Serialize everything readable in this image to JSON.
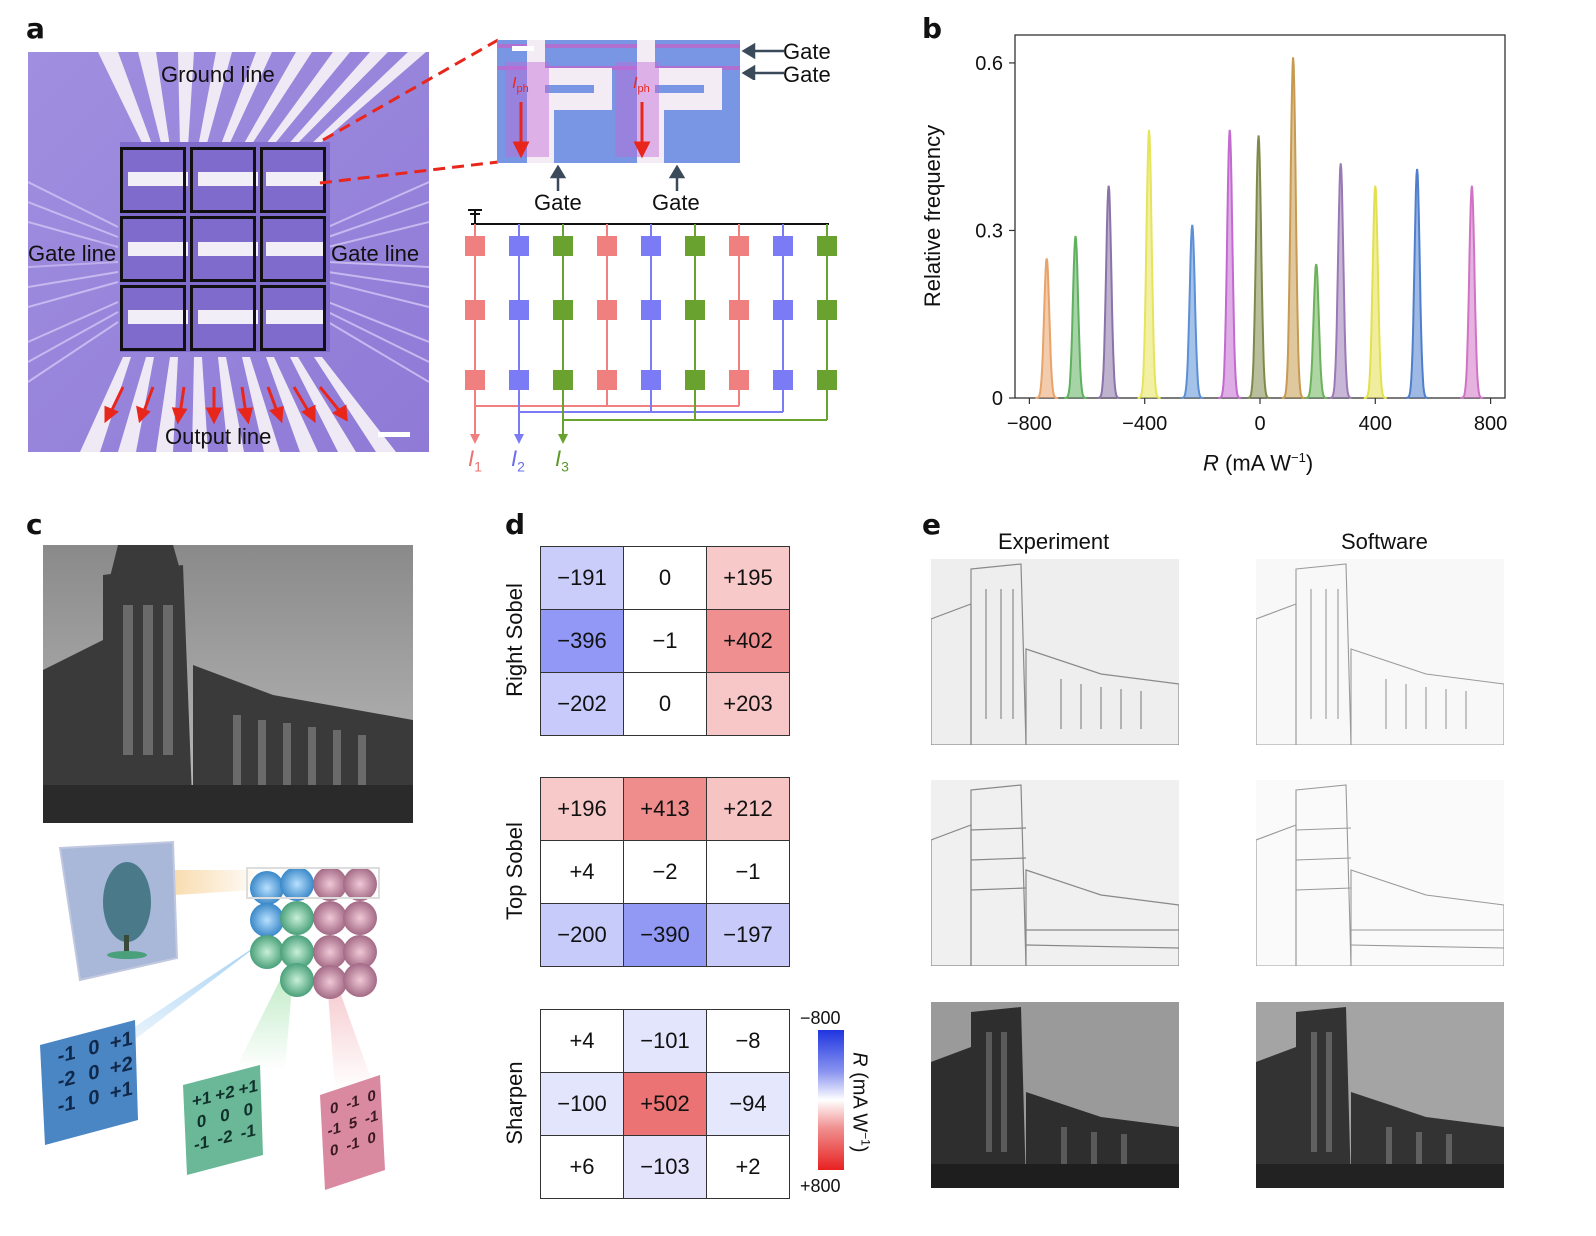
{
  "panel_labels": {
    "a": "a",
    "b": "b",
    "c": "c",
    "d": "d",
    "e": "e"
  },
  "panel_a": {
    "ground_line": "Ground line",
    "gate_line_left": "Gate line",
    "gate_line_right": "Gate line",
    "output_line": "Output line",
    "zoom_gate_top": "Gate",
    "zoom_gate_bottom": "Gate",
    "zoom_gate_left": "Gate",
    "zoom_gate_right": "Gate",
    "iph": "I",
    "iph_sub": "ph",
    "circuit_outputs": [
      {
        "name": "I",
        "sub": "1",
        "color": "#e8726f"
      },
      {
        "name": "I",
        "sub": "2",
        "color": "#6a6cf0"
      },
      {
        "name": "I",
        "sub": "3",
        "color": "#5a9a2a"
      }
    ],
    "colors": {
      "red": "#f08080",
      "blue": "#7b7bf5",
      "green": "#6aa22f"
    }
  },
  "chart_data": {
    "type": "area",
    "title": "",
    "xlabel": "R (mA W−1)",
    "ylabel": "Relative frequency",
    "xlim": [
      -850,
      850
    ],
    "ylim": [
      0,
      0.65
    ],
    "xticks": [
      -800,
      -400,
      0,
      400,
      800
    ],
    "xtick_labels": [
      "−800",
      "−400",
      "0",
      "400",
      "800"
    ],
    "yticks": [
      0,
      0.3,
      0.6
    ],
    "ytick_labels": [
      "0",
      "0.3",
      "0.6"
    ],
    "peaks": [
      {
        "center": -740,
        "height": 0.25,
        "color": "#e8a36a"
      },
      {
        "center": -640,
        "height": 0.29,
        "color": "#5fb05f"
      },
      {
        "center": -525,
        "height": 0.38,
        "color": "#8a73a8"
      },
      {
        "center": -385,
        "height": 0.48,
        "color": "#e6e45a"
      },
      {
        "center": -235,
        "height": 0.31,
        "color": "#5b8fd6"
      },
      {
        "center": -105,
        "height": 0.48,
        "color": "#c36ad0"
      },
      {
        "center": -5,
        "height": 0.47,
        "color": "#7f8a4a"
      },
      {
        "center": 115,
        "height": 0.61,
        "color": "#c79a4f"
      },
      {
        "center": 195,
        "height": 0.24,
        "color": "#6bb25a"
      },
      {
        "center": 280,
        "height": 0.42,
        "color": "#9a7ab5"
      },
      {
        "center": 400,
        "height": 0.38,
        "color": "#e3e04f"
      },
      {
        "center": 545,
        "height": 0.41,
        "color": "#4f7fcc"
      },
      {
        "center": 735,
        "height": 0.38,
        "color": "#d173c5"
      }
    ]
  },
  "panel_c": {
    "kernel_blue": [
      "-1",
      "0",
      "+1",
      "-2",
      "0",
      "+2",
      "-1",
      "0",
      "+1"
    ],
    "kernel_green": [
      "+1",
      "+2",
      "+1",
      "0",
      "0",
      "0",
      "-1",
      "-2",
      "-1"
    ],
    "kernel_red": [
      "0",
      "-1",
      "0",
      "-1",
      "5",
      "-1",
      "0",
      "-1",
      "0"
    ]
  },
  "panel_d": {
    "kernels": [
      {
        "title": "Right Sobel",
        "values": [
          "−191",
          "0",
          "+195",
          "−396",
          "−1",
          "+402",
          "−202",
          "0",
          "+203"
        ],
        "nums": [
          -191,
          0,
          195,
          -396,
          -1,
          402,
          -202,
          0,
          203
        ]
      },
      {
        "title": "Top Sobel",
        "values": [
          "+196",
          "+413",
          "+212",
          "+4",
          "−2",
          "−1",
          "−200",
          "−390",
          "−197"
        ],
        "nums": [
          196,
          413,
          212,
          4,
          -2,
          -1,
          -200,
          -390,
          -197
        ]
      },
      {
        "title": "Sharpen",
        "values": [
          "+4",
          "−101",
          "−8",
          "−100",
          "+502",
          "−94",
          "+6",
          "−103",
          "+2"
        ],
        "nums": [
          4,
          -101,
          -8,
          -100,
          502,
          -94,
          6,
          -103,
          2
        ]
      }
    ],
    "colorbar": {
      "top": "−800",
      "bottom": "+800",
      "label": "R (mA W−1)",
      "blue": "#2b3fe0",
      "red": "#e03b3b"
    }
  },
  "panel_e": {
    "col_experiment": "Experiment",
    "col_software": "Software"
  }
}
